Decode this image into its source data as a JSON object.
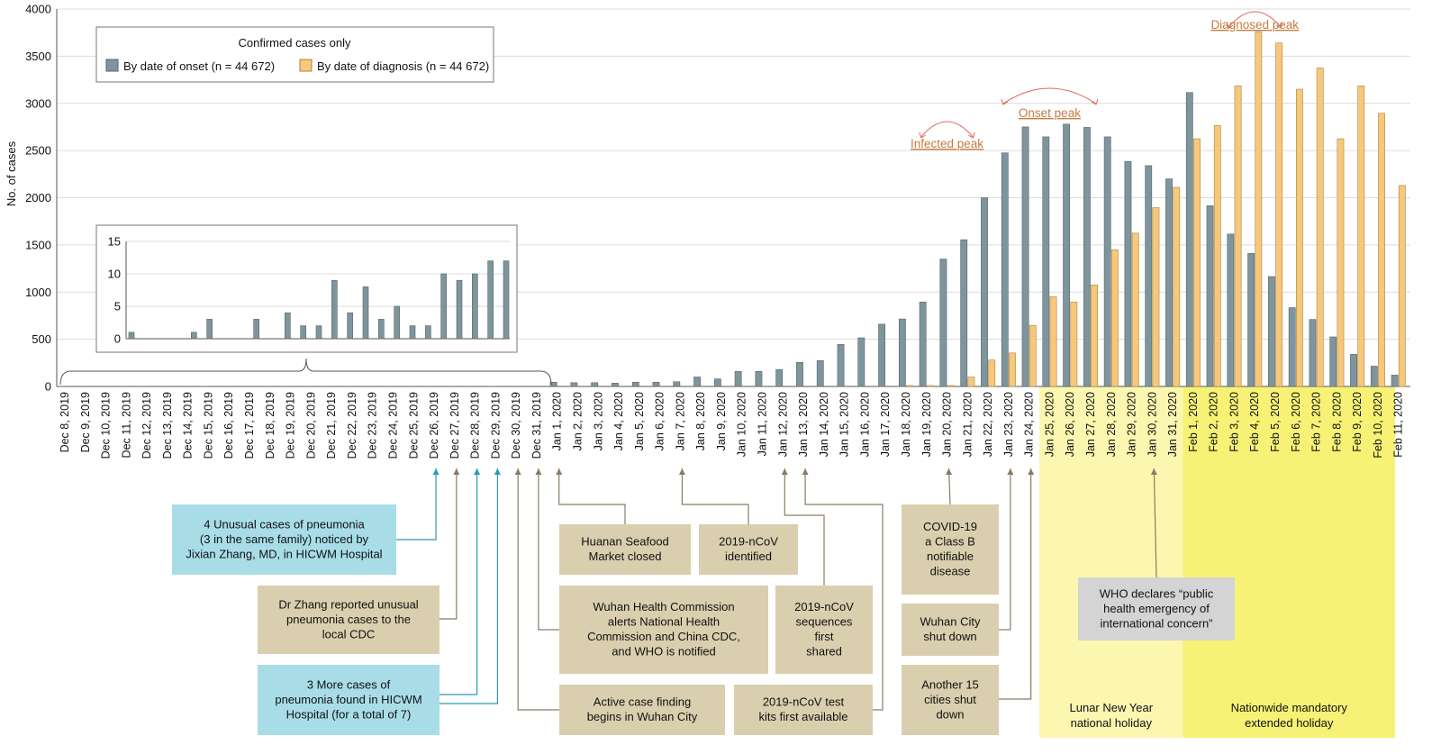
{
  "chart_data": {
    "type": "bar",
    "ylabel": "No. of cases",
    "ylim": [
      0,
      4000
    ],
    "yticks": [
      0,
      500,
      1000,
      1500,
      2000,
      2500,
      3000,
      3500,
      4000
    ],
    "grid": true,
    "legend": {
      "title": "Confirmed cases only",
      "placement": "top-left",
      "entries": [
        "By date of onset (n = 44 672)",
        "By date of diagnosis (n = 44 672)"
      ]
    },
    "colors": {
      "onset": "#7f959c",
      "diagnosis": "#f7c77a",
      "accent": "#c77a3e",
      "arrow_brown": "#8b7b63",
      "arrow_blue": "#2a9bb5"
    },
    "categories": [
      "Dec 8, 2019",
      "Dec 9, 2019",
      "Dec 10, 2019",
      "Dec 11, 2019",
      "Dec 12, 2019",
      "Dec 13, 2019",
      "Dec 14, 2019",
      "Dec 15, 2019",
      "Dec 16, 2019",
      "Dec 17, 2019",
      "Dec 18, 2019",
      "Dec 19, 2019",
      "Dec 20, 2019",
      "Dec 21, 2019",
      "Dec 22, 2019",
      "Dec 23, 2019",
      "Dec 24, 2019",
      "Dec 25, 2019",
      "Dec 26, 2019",
      "Dec 27, 2019",
      "Dec 28, 2019",
      "Dec 29, 2019",
      "Dec 30, 2019",
      "Dec 31, 2019",
      "Jan 1, 2020",
      "Jan 2, 2020",
      "Jan 3, 2020",
      "Jan 4, 2020",
      "Jan 5, 2020",
      "Jan 6, 2020",
      "Jan 7, 2020",
      "Jan 8, 2020",
      "Jan 9, 2020",
      "Jan 10, 2020",
      "Jan 11, 2020",
      "Jan 12, 2020",
      "Jan 13, 2020",
      "Jan 14, 2020",
      "Jan 15, 2020",
      "Jan 16, 2020",
      "Jan 17, 2020",
      "Jan 18, 2020",
      "Jan 19, 2020",
      "Jan 20, 2020",
      "Jan 21, 2020",
      "Jan 22, 2020",
      "Jan 23, 2020",
      "Jan 24, 2020",
      "Jan 25, 2020",
      "Jan 26, 2020",
      "Jan 27, 2020",
      "Jan 28, 2020",
      "Jan 29, 2020",
      "Jan 30, 2020",
      "Jan 31, 2020",
      "Feb 1, 2020",
      "Feb 2, 2020",
      "Feb 3, 2020",
      "Feb 4, 2020",
      "Feb 5, 2020",
      "Feb 6, 2020",
      "Feb 7, 2020",
      "Feb 8, 2020",
      "Feb 9, 2020",
      "Feb 10, 2020",
      "Feb 11, 2020"
    ],
    "series": [
      {
        "name": "By date of onset (n = 44 672)",
        "key": "onset",
        "values": [
          1,
          0,
          0,
          1,
          1,
          0,
          0,
          1,
          0,
          0,
          1,
          1,
          1,
          1,
          1,
          1,
          1,
          1,
          1,
          1,
          1,
          1,
          0,
          0,
          45,
          40,
          40,
          35,
          45,
          45,
          50,
          100,
          80,
          160,
          160,
          180,
          255,
          275,
          445,
          515,
          660,
          715,
          895,
          1350,
          1555,
          2000,
          2475,
          2750,
          2645,
          2780,
          2745,
          2645,
          2385,
          2340,
          2200,
          3115,
          1915,
          1615,
          1410,
          1165,
          835,
          710,
          525,
          340,
          215,
          120
        ]
      },
      {
        "name": "By date of diagnosis (n = 44 672)",
        "key": "diagnosis",
        "values": [
          0,
          0,
          0,
          0,
          0,
          0,
          0,
          0,
          0,
          0,
          0,
          0,
          0,
          0,
          0,
          0,
          0,
          0,
          0,
          0,
          0,
          0,
          0,
          0,
          0,
          0,
          0,
          0,
          0,
          0,
          0,
          0,
          0,
          0,
          0,
          0,
          0,
          0,
          0,
          0,
          0,
          10,
          10,
          10,
          100,
          280,
          355,
          645,
          950,
          895,
          1075,
          1450,
          1625,
          1895,
          2110,
          2625,
          2765,
          3185,
          3760,
          3640,
          3150,
          3375,
          2625,
          3185,
          2895,
          2130
        ]
      }
    ],
    "inset": {
      "yticks": [
        0,
        5,
        10,
        15
      ],
      "ylim": [
        0,
        15
      ],
      "values": [
        1,
        0,
        0,
        0,
        1,
        3,
        0,
        0,
        3,
        0,
        4,
        2,
        2,
        9,
        4,
        8,
        3,
        5,
        2,
        2,
        10,
        9,
        10,
        12,
        12
      ]
    },
    "holidays": [
      {
        "label": "Lunar New Year national holiday",
        "from": "Jan 25, 2020",
        "to": "Jan 31, 2020",
        "color": "#fbf7b0"
      },
      {
        "label": "Nationwide mandatory extended holiday",
        "from": "Feb 1, 2020",
        "to": "Feb 11, 2020",
        "color": "#f7f275"
      }
    ],
    "peaks": [
      {
        "label": "Infected peak",
        "from": "Jan 19, 2020",
        "to": "Jan 21, 2020"
      },
      {
        "label": "Onset peak",
        "from": "Jan 23, 2020",
        "to": "Jan 27, 2020"
      },
      {
        "label": "Diagnosed peak",
        "from": "Feb 3, 2020",
        "to": "Feb 5, 2020"
      }
    ],
    "annotations": [
      {
        "id": "a1",
        "text": "4 Unusual cases of pneumonia (3 in the same family) noticed by Jixian Zhang, MD, in HICWM Hospital",
        "lines": [
          "4 Unusual cases of pneumonia",
          "(3 in the same family) noticed by",
          "Jixian Zhang, MD, in HICWM Hospital"
        ],
        "date": "Dec 26, 2019",
        "style": "blue"
      },
      {
        "id": "a2",
        "text": "Dr Zhang reported unusual pneumonia cases to the local CDC",
        "lines": [
          "Dr Zhang reported unusual",
          "pneumonia cases to the",
          "local CDC"
        ],
        "date": "Dec 27, 2019",
        "style": "tan"
      },
      {
        "id": "a3",
        "text": "3 More cases of pneumonia found in HICWM Hospital (for a total of 7)",
        "lines": [
          "3 More cases of",
          "pneumonia found in HICWM",
          "Hospital (for a total of 7)"
        ],
        "date": "Dec 28–29, 2019",
        "style": "blue"
      },
      {
        "id": "a4",
        "text": "Huanan Seafood Market closed",
        "lines": [
          "Huanan Seafood",
          "Market closed"
        ],
        "date": "Jan 1, 2020",
        "style": "tan"
      },
      {
        "id": "a5",
        "text": "2019-nCoV identified",
        "lines": [
          "2019-nCoV",
          "identified"
        ],
        "date": "Jan 7, 2020",
        "style": "tan"
      },
      {
        "id": "a6",
        "text": "Wuhan Health Commission alerts National Health Commission and China CDC, and WHO is notified",
        "lines": [
          "Wuhan Health Commission",
          "alerts National Health",
          "Commission and China CDC,",
          "and WHO is notified"
        ],
        "date": "Dec 31, 2019",
        "style": "tan"
      },
      {
        "id": "a7",
        "text": "2019-nCoV sequences first shared",
        "lines": [
          "2019-nCoV",
          "sequences",
          "first",
          "shared"
        ],
        "date": "Jan 12, 2020",
        "style": "tan"
      },
      {
        "id": "a8",
        "text": "Active case finding begins in Wuhan City",
        "lines": [
          "Active case finding",
          "begins in Wuhan City"
        ],
        "date": "Dec 30, 2019",
        "style": "tan"
      },
      {
        "id": "a9",
        "text": "2019-nCoV test kits first available",
        "lines": [
          "2019-nCoV test",
          "kits first available"
        ],
        "date": "Jan 13, 2020",
        "style": "tan"
      },
      {
        "id": "a10",
        "text": "COVID-19 a Class B notifiable disease",
        "lines": [
          "COVID-19",
          "a Class B",
          "notifiable",
          "disease"
        ],
        "date": "Jan 20, 2020",
        "style": "tan"
      },
      {
        "id": "a11",
        "text": "Wuhan City shut down",
        "lines": [
          "Wuhan City",
          "shut down"
        ],
        "date": "Jan 23, 2020",
        "style": "tan"
      },
      {
        "id": "a12",
        "text": "Another 15 cities shut down",
        "lines": [
          "Another 15",
          "cities shut",
          "down"
        ],
        "date": "Jan 24, 2020",
        "style": "tan"
      },
      {
        "id": "a13",
        "text": "WHO declares “public health emergency of international concern”",
        "lines": [
          "WHO declares “public",
          "health emergency of",
          "international concern”"
        ],
        "date": "Jan 30, 2020",
        "style": "gray"
      }
    ]
  }
}
